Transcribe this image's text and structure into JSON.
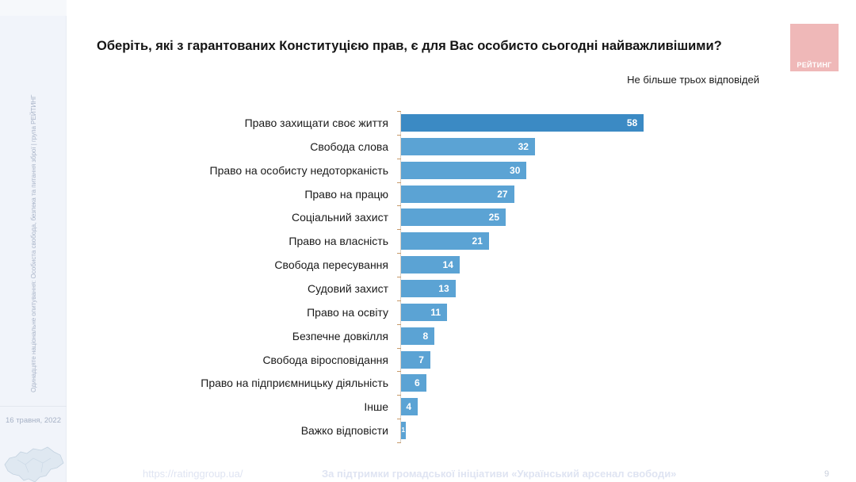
{
  "sidebar": {
    "vertical_text": "Одинадцяте національне опитування: Особиста свобода, безпека та питання зброї | група РЕЙТИНГ",
    "date": "16 травня, 2022",
    "map_icon": "ukraine-map-icon"
  },
  "header": {
    "title": "Оберіть, які з гарантованих Конституцією прав, є для Вас особисто сьогодні найважливішими?",
    "subtitle": "Не більше трьох відповідей",
    "logo_text": "РЕЙТИНГ",
    "logo_color": "#efb8b8"
  },
  "footer": {
    "url": "https://ratinggroup.ua/",
    "support": "За підтримки  громадської ініціативи «Український арсенал свободи»",
    "page": "9"
  },
  "colors": {
    "bar_primary": "#3b8ac4",
    "bar_secondary": "#5ba3d4"
  },
  "chart_data": {
    "type": "bar",
    "orientation": "horizontal",
    "title": "Оберіть, які з гарантованих Конституцією прав, є для Вас особисто сьогодні найважливішими?",
    "subtitle": "Не більше трьох відповідей",
    "xlabel": "",
    "ylabel": "",
    "unit": "%",
    "grid": false,
    "legend": null,
    "categories": [
      "Право захищати своє життя",
      "Свобода слова",
      "Право на особисту недоторканість",
      "Право на працю",
      "Соціальний захист",
      "Право на власність",
      "Свобода пересування",
      "Судовий захист",
      "Право на освіту",
      "Безпечне довкілля",
      "Свобода віросповідання",
      "Право на підприємницьку діяльність",
      "Інше",
      "Важко відповісти"
    ],
    "values": [
      58,
      32,
      30,
      27,
      25,
      21,
      14,
      13,
      11,
      8,
      7,
      6,
      4,
      1
    ],
    "value_labels": [
      "58",
      "32",
      "30",
      "27",
      "25",
      "21",
      "14",
      "13",
      "11",
      "8",
      "7",
      "6",
      "4",
      "1"
    ],
    "xlim": [
      0,
      60
    ]
  }
}
